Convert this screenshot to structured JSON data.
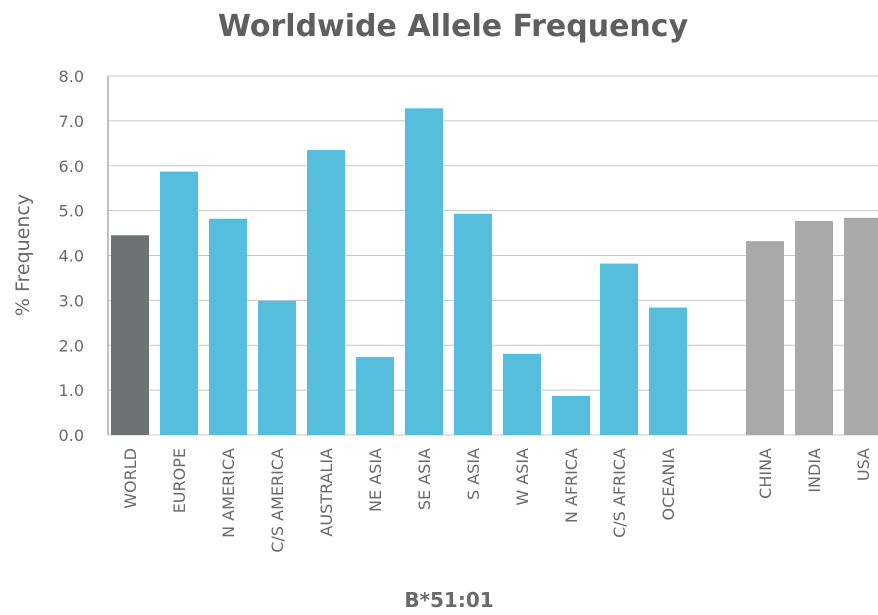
{
  "chart_data": {
    "type": "bar",
    "title": "Worldwide Allele Frequency",
    "ylabel": "% Frequency",
    "xlabel": "B*51:01",
    "ylim": [
      0,
      8
    ],
    "yticks": [
      "0.0",
      "1.0",
      "2.0",
      "3.0",
      "4.0",
      "5.0",
      "6.0",
      "7.0",
      "8.0"
    ],
    "grid": true,
    "categories": [
      "WORLD",
      "EUROPE",
      "N AMERICA",
      "C/S AMERICA",
      "AUSTRALIA",
      "NE ASIA",
      "SE ASIA",
      "S ASIA",
      "W ASIA",
      "N AFRICA",
      "C/S AFRICA",
      "OCEANIA",
      "CHINA",
      "INDIA",
      "USA"
    ],
    "values": [
      4.45,
      5.87,
      4.82,
      2.99,
      6.35,
      1.74,
      7.28,
      4.93,
      1.81,
      0.87,
      3.82,
      2.84,
      4.32,
      4.77,
      4.84
    ],
    "groups": [
      "world",
      "region",
      "region",
      "region",
      "region",
      "region",
      "region",
      "region",
      "region",
      "region",
      "region",
      "region",
      "country",
      "country",
      "country"
    ],
    "colors": {
      "world": "#6e7273",
      "region": "#56bedd",
      "country": "#a9a9a9"
    }
  }
}
